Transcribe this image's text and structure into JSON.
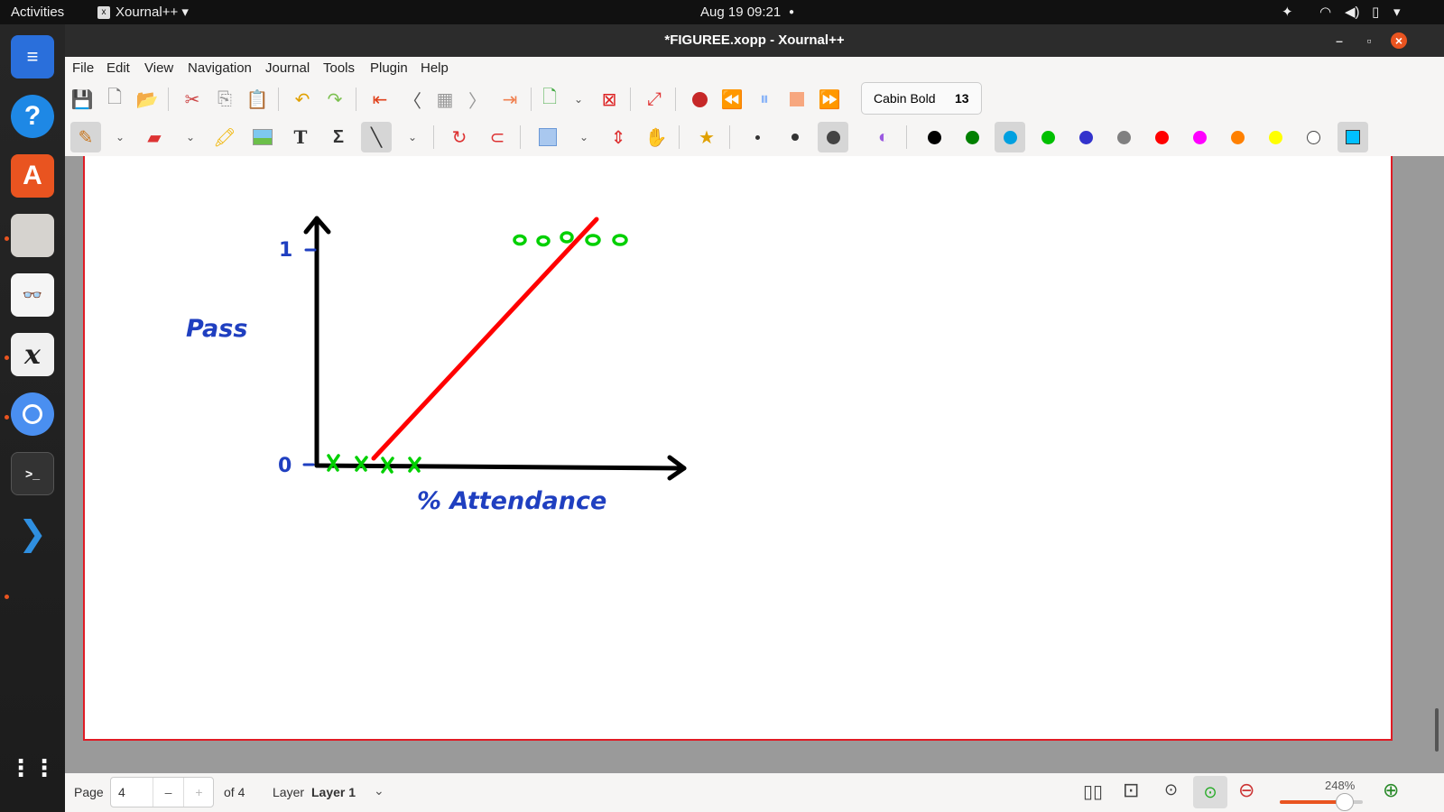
{
  "topbar": {
    "activities": "Activities",
    "app_menu": "Xournal++",
    "datetime": "Aug 19  09:21"
  },
  "window": {
    "title": "*FIGUREE.xopp - Xournal++"
  },
  "menu": {
    "items": [
      "File",
      "Edit",
      "View",
      "Navigation",
      "Journal",
      "Tools",
      "Plugin",
      "Help"
    ]
  },
  "font_selector": {
    "font": "Cabin Bold",
    "size": "13"
  },
  "palette": {
    "colors": [
      "#000000",
      "#008000",
      "#00a0e0",
      "#00c000",
      "#3333cc",
      "#808080",
      "#ff0000",
      "#ff00ff",
      "#ff8000",
      "#ffff00",
      "#ffffff"
    ],
    "selected_index": 2,
    "current": "#00c0ff"
  },
  "drawing": {
    "y_tick_1": "1",
    "y_tick_0": "0",
    "y_label": "Pass",
    "x_label": "% Attendance"
  },
  "status": {
    "page_label": "Page",
    "page_value": "4",
    "of_pages": "of 4",
    "layer_label": "Layer",
    "layer_value": "Layer 1",
    "zoom": "248%"
  }
}
